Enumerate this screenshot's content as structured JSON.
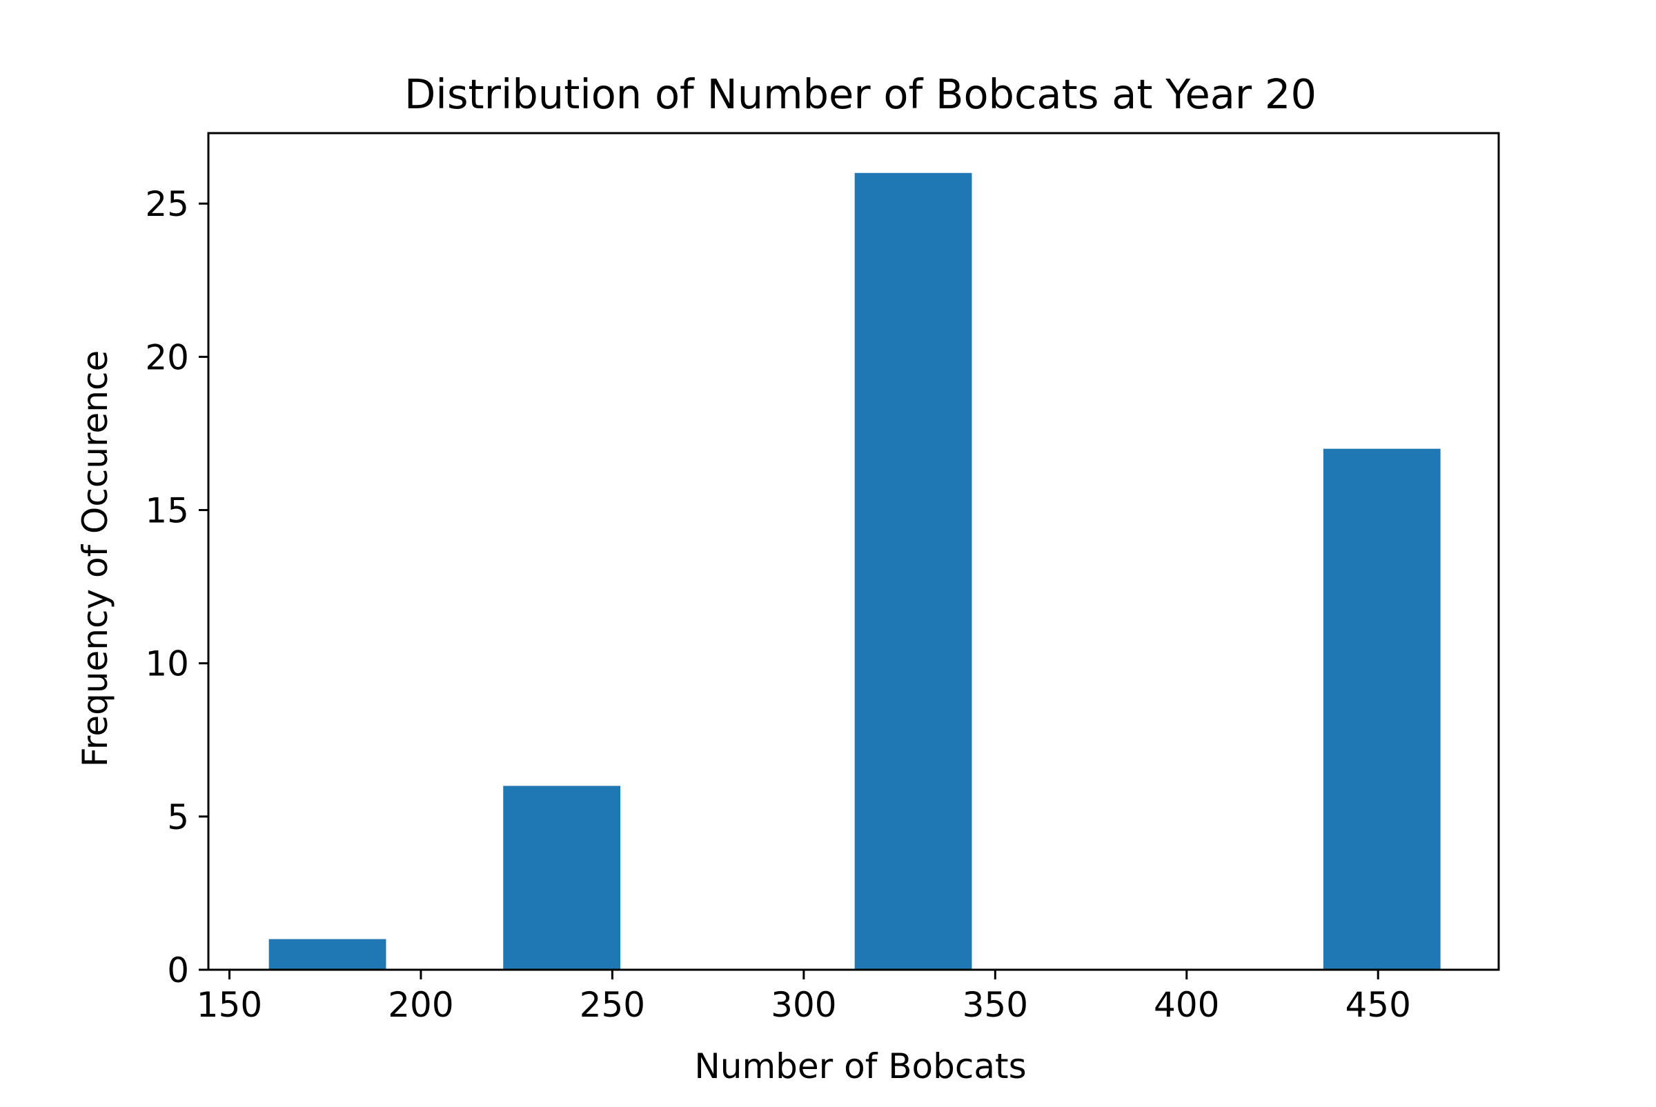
{
  "chart_data": {
    "type": "bar",
    "title": "Distribution of Number of Bobcats at Year 20",
    "xlabel": "Number of Bobcats",
    "ylabel": "Frequency of Occurence",
    "xlim": [
      144.5,
      481.5
    ],
    "ylim": [
      0,
      27.3
    ],
    "xticks": [
      150,
      200,
      250,
      300,
      350,
      400,
      450
    ],
    "yticks": [
      0,
      5,
      10,
      15,
      20,
      25
    ],
    "grid": false,
    "bar_color": "#1f77b4",
    "bins": [
      {
        "start": 160.3,
        "end": 190.9,
        "count": 1
      },
      {
        "start": 221.5,
        "end": 252.1,
        "count": 6
      },
      {
        "start": 313.3,
        "end": 343.9,
        "count": 26
      },
      {
        "start": 435.7,
        "end": 466.3,
        "count": 17
      }
    ]
  }
}
